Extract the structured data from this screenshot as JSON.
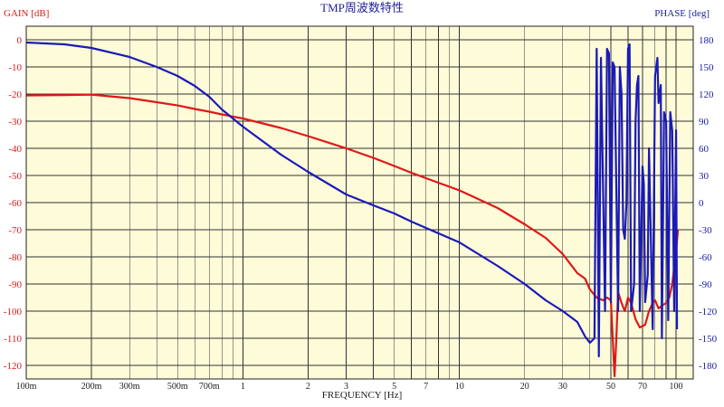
{
  "chart_data": {
    "type": "line",
    "title": "TMP周波数特性",
    "xlabel": "FREQUENCY [Hz]",
    "ylabel_left": "GAIN [dB]",
    "ylabel_right": "PHASE [deg]",
    "x_scale": "log",
    "xlim": [
      0.1,
      120
    ],
    "ylim_left": [
      -125,
      5
    ],
    "ylim_right": [
      -195,
      195
    ],
    "x_ticks": [
      {
        "value": 0.1,
        "label": "100m"
      },
      {
        "value": 0.2,
        "label": "200m"
      },
      {
        "value": 0.3,
        "label": "300m"
      },
      {
        "value": 0.5,
        "label": "500m"
      },
      {
        "value": 0.7,
        "label": "700m"
      },
      {
        "value": 1,
        "label": "1"
      },
      {
        "value": 2,
        "label": "2"
      },
      {
        "value": 3,
        "label": "3"
      },
      {
        "value": 5,
        "label": "5"
      },
      {
        "value": 7,
        "label": "7"
      },
      {
        "value": 10,
        "label": "10"
      },
      {
        "value": 20,
        "label": "20"
      },
      {
        "value": 30,
        "label": "30"
      },
      {
        "value": 50,
        "label": "50"
      },
      {
        "value": 70,
        "label": "70"
      },
      {
        "value": 100,
        "label": "100"
      }
    ],
    "y_left_ticks": [
      0,
      -10,
      -20,
      -30,
      -40,
      -50,
      -60,
      -70,
      -80,
      -90,
      -100,
      -110,
      -120
    ],
    "y_right_ticks": [
      180,
      150,
      120,
      90,
      60,
      30,
      0,
      -30,
      -60,
      -90,
      -120,
      -150,
      -180
    ],
    "grid": true,
    "colors": {
      "plot_bg": "#fdfbd8",
      "grid": "#333333",
      "gain": "#e01818",
      "phase": "#1a1ab8",
      "left_axis_text": "#e01818",
      "right_axis_text": "#2020a0",
      "title_text": "#2020a0"
    },
    "series": [
      {
        "axis": "left",
        "color": "#e01818",
        "points": [
          [
            0.1,
            -20.5
          ],
          [
            0.15,
            -20.4
          ],
          [
            0.2,
            -20.2
          ],
          [
            0.3,
            -21.5
          ],
          [
            0.4,
            -23
          ],
          [
            0.5,
            -24.2
          ],
          [
            0.6,
            -25.5
          ],
          [
            0.7,
            -26.5
          ],
          [
            0.8,
            -27.5
          ],
          [
            1.0,
            -29
          ],
          [
            1.5,
            -32.5
          ],
          [
            2.0,
            -35.5
          ],
          [
            3.0,
            -40
          ],
          [
            4.0,
            -43.5
          ],
          [
            5.0,
            -46.5
          ],
          [
            6.0,
            -49
          ],
          [
            7.0,
            -51
          ],
          [
            10.0,
            -55.5
          ],
          [
            15.0,
            -62
          ],
          [
            20.0,
            -68
          ],
          [
            25.0,
            -73
          ],
          [
            30.0,
            -79
          ],
          [
            35.0,
            -86
          ],
          [
            38.0,
            -88
          ],
          [
            40.0,
            -92
          ],
          [
            43.0,
            -95
          ],
          [
            46.0,
            -96
          ],
          [
            48.0,
            -95
          ],
          [
            50.0,
            -96
          ],
          [
            52.0,
            -124
          ],
          [
            53.0,
            -110
          ],
          [
            54.0,
            -93
          ],
          [
            56.0,
            -97
          ],
          [
            58.0,
            -100
          ],
          [
            60.0,
            -95
          ],
          [
            62.0,
            -97
          ],
          [
            65.0,
            -103
          ],
          [
            68.0,
            -106
          ],
          [
            72.0,
            -105
          ],
          [
            75.0,
            -100
          ],
          [
            78.0,
            -97
          ],
          [
            80.0,
            -96
          ],
          [
            83.0,
            -99
          ],
          [
            86.0,
            -98
          ],
          [
            90.0,
            -97
          ],
          [
            93.0,
            -95
          ],
          [
            96.0,
            -90
          ],
          [
            100.0,
            -78
          ],
          [
            102.0,
            -70
          ]
        ]
      },
      {
        "axis": "right",
        "color": "#1a1ab8",
        "points": [
          [
            0.1,
            177
          ],
          [
            0.15,
            175
          ],
          [
            0.2,
            171
          ],
          [
            0.3,
            161
          ],
          [
            0.4,
            150
          ],
          [
            0.5,
            140
          ],
          [
            0.6,
            129
          ],
          [
            0.7,
            117
          ],
          [
            0.8,
            103
          ],
          [
            1.0,
            84
          ],
          [
            1.5,
            53
          ],
          [
            2.0,
            34
          ],
          [
            3.0,
            9
          ],
          [
            4.0,
            -3
          ],
          [
            5.0,
            -12
          ],
          [
            6.0,
            -21
          ],
          [
            7.0,
            -28
          ],
          [
            10.0,
            -44
          ],
          [
            15.0,
            -70
          ],
          [
            20.0,
            -90
          ],
          [
            25.0,
            -108
          ],
          [
            30.0,
            -120
          ],
          [
            35.0,
            -132
          ],
          [
            38.0,
            -148
          ],
          [
            40.0,
            -155
          ],
          [
            42.0,
            -150
          ],
          [
            43.0,
            170
          ],
          [
            44.0,
            -170
          ],
          [
            45.0,
            160
          ],
          [
            47.0,
            -120
          ],
          [
            48.0,
            170
          ],
          [
            49.0,
            165
          ],
          [
            50.0,
            -110
          ],
          [
            51.0,
            155
          ],
          [
            52.0,
            150
          ],
          [
            54.0,
            -120
          ],
          [
            55.0,
            150
          ],
          [
            56.0,
            120
          ],
          [
            57.0,
            -30
          ],
          [
            58.0,
            -40
          ],
          [
            59.0,
            0
          ],
          [
            60.0,
            170
          ],
          [
            61.0,
            175
          ],
          [
            62.0,
            -120
          ],
          [
            64.0,
            -90
          ],
          [
            65.0,
            90
          ],
          [
            66.0,
            130
          ],
          [
            67.0,
            140
          ],
          [
            68.0,
            -120
          ],
          [
            70.0,
            40
          ],
          [
            71.0,
            20
          ],
          [
            72.0,
            -110
          ],
          [
            74.0,
            -80
          ],
          [
            75.0,
            60
          ],
          [
            78.0,
            -140
          ],
          [
            80.0,
            140
          ],
          [
            82.0,
            160
          ],
          [
            83.0,
            110
          ],
          [
            85.0,
            130
          ],
          [
            86.0,
            -150
          ],
          [
            88.0,
            100
          ],
          [
            90.0,
            90
          ],
          [
            92.0,
            -130
          ],
          [
            94.0,
            100
          ],
          [
            96.0,
            80
          ],
          [
            98.0,
            -120
          ],
          [
            100.0,
            80
          ],
          [
            101.0,
            -140
          ]
        ]
      }
    ]
  }
}
